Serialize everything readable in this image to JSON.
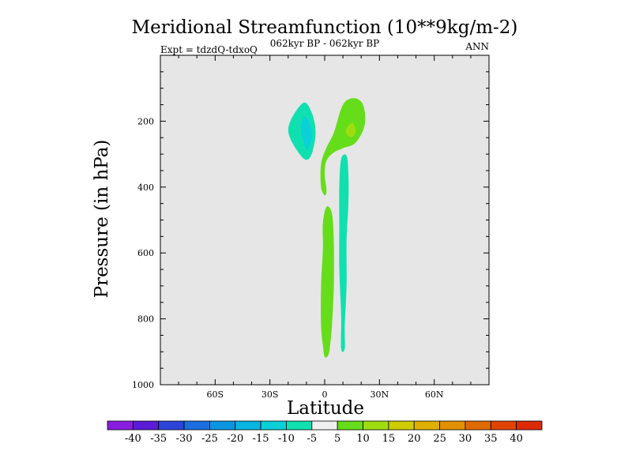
{
  "chart_data": {
    "type": "heatmap",
    "title": "Meridional Streamfunction (10**9kg/m-2)",
    "subtitle": "062kyr BP - 062kyr BP",
    "left_label": "Expt = tdzdQ-tdxoQ",
    "right_label": "ANN",
    "xlabel": "Latitude",
    "ylabel": "Pressure (in hPa)",
    "xlim": [
      -90,
      90
    ],
    "ylim": [
      1000,
      0
    ],
    "y_reversed": true,
    "x_ticks": [
      {
        "value": -60,
        "label": "60S"
      },
      {
        "value": -30,
        "label": "30S"
      },
      {
        "value": 0,
        "label": "0"
      },
      {
        "value": 30,
        "label": "30N"
      },
      {
        "value": 60,
        "label": "60N"
      }
    ],
    "y_ticks": [
      {
        "value": 200,
        "label": "200"
      },
      {
        "value": 400,
        "label": "400"
      },
      {
        "value": 600,
        "label": "600"
      },
      {
        "value": 800,
        "label": "800"
      },
      {
        "value": 1000,
        "label": "1000"
      }
    ],
    "background_color": "#e6e6e6",
    "grid": false,
    "colorbar": {
      "levels": [
        -40,
        -35,
        -30,
        -25,
        -20,
        -15,
        -10,
        -5,
        5,
        10,
        15,
        20,
        25,
        30,
        35,
        40
      ],
      "labels": [
        "-40",
        "-35",
        "-30",
        "-25",
        "-20",
        "-15",
        "-10",
        "-5",
        "5",
        "10",
        "15",
        "20",
        "25",
        "30",
        "35",
        "40"
      ],
      "colors": [
        "#8a1ee0",
        "#5a1cd6",
        "#2a45d8",
        "#1a6ee0",
        "#0a96e0",
        "#08b4e0",
        "#0ad0d8",
        "#10e0b0",
        "#f0f0f0",
        "#66dd1a",
        "#a0dd10",
        "#cccc00",
        "#e0b000",
        "#e09000",
        "#e06a00",
        "#e04400",
        "#dd2a00"
      ]
    },
    "regions": [
      {
        "name": "southern-negative-cell",
        "value_range": [
          -10,
          -5
        ],
        "color": "#10e0b0",
        "points": [
          [
            -20,
            225
          ],
          [
            -12,
            145
          ],
          [
            -7,
            175
          ],
          [
            -5,
            240
          ],
          [
            -8,
            310
          ],
          [
            -13,
            305
          ]
        ]
      },
      {
        "name": "southern-negative-core",
        "value_range": [
          -15,
          -10
        ],
        "color": "#0ad0d8",
        "points": [
          [
            -13,
            225
          ],
          [
            -11,
            185
          ],
          [
            -8,
            210
          ],
          [
            -7,
            250
          ],
          [
            -10,
            285
          ]
        ]
      },
      {
        "name": "northern-positive-cell",
        "value_range": [
          5,
          10
        ],
        "color": "#66dd1a",
        "points": [
          [
            5,
            235
          ],
          [
            10,
            150
          ],
          [
            16,
            130
          ],
          [
            21,
            150
          ],
          [
            22,
            210
          ],
          [
            17,
            265
          ],
          [
            10,
            282
          ],
          [
            5,
            295
          ],
          [
            1,
            320
          ],
          [
            0,
            360
          ],
          [
            1,
            410
          ],
          [
            0,
            425
          ],
          [
            -2,
            400
          ],
          [
            -2,
            330
          ],
          [
            1,
            280
          ]
        ]
      },
      {
        "name": "northern-positive-core",
        "value_range": [
          10,
          15
        ],
        "color": "#a0dd10",
        "points": [
          [
            12,
            222
          ],
          [
            15,
            205
          ],
          [
            17,
            228
          ],
          [
            15,
            248
          ],
          [
            12,
            240
          ]
        ]
      },
      {
        "name": "tropical-upper-negative",
        "value_range": [
          -10,
          -5
        ],
        "color": "#10e0b0",
        "points": [
          [
            8,
            400
          ],
          [
            9,
            315
          ],
          [
            12,
            305
          ],
          [
            13,
            360
          ],
          [
            13,
            450
          ],
          [
            12,
            560
          ],
          [
            12,
            700
          ],
          [
            11,
            820
          ],
          [
            11,
            890
          ],
          [
            9,
            890
          ],
          [
            9,
            790
          ],
          [
            8,
            650
          ],
          [
            8,
            520
          ]
        ]
      },
      {
        "name": "lower-positive-column",
        "value_range": [
          5,
          10
        ],
        "color": "#66dd1a",
        "points": [
          [
            -2,
            700
          ],
          [
            -1,
            590
          ],
          [
            -1,
            510
          ],
          [
            1,
            460
          ],
          [
            4,
            480
          ],
          [
            5,
            570
          ],
          [
            5,
            700
          ],
          [
            4,
            820
          ],
          [
            3,
            880
          ],
          [
            2,
            910
          ],
          [
            0,
            915
          ],
          [
            -1,
            880
          ],
          [
            -2,
            820
          ]
        ]
      }
    ]
  }
}
